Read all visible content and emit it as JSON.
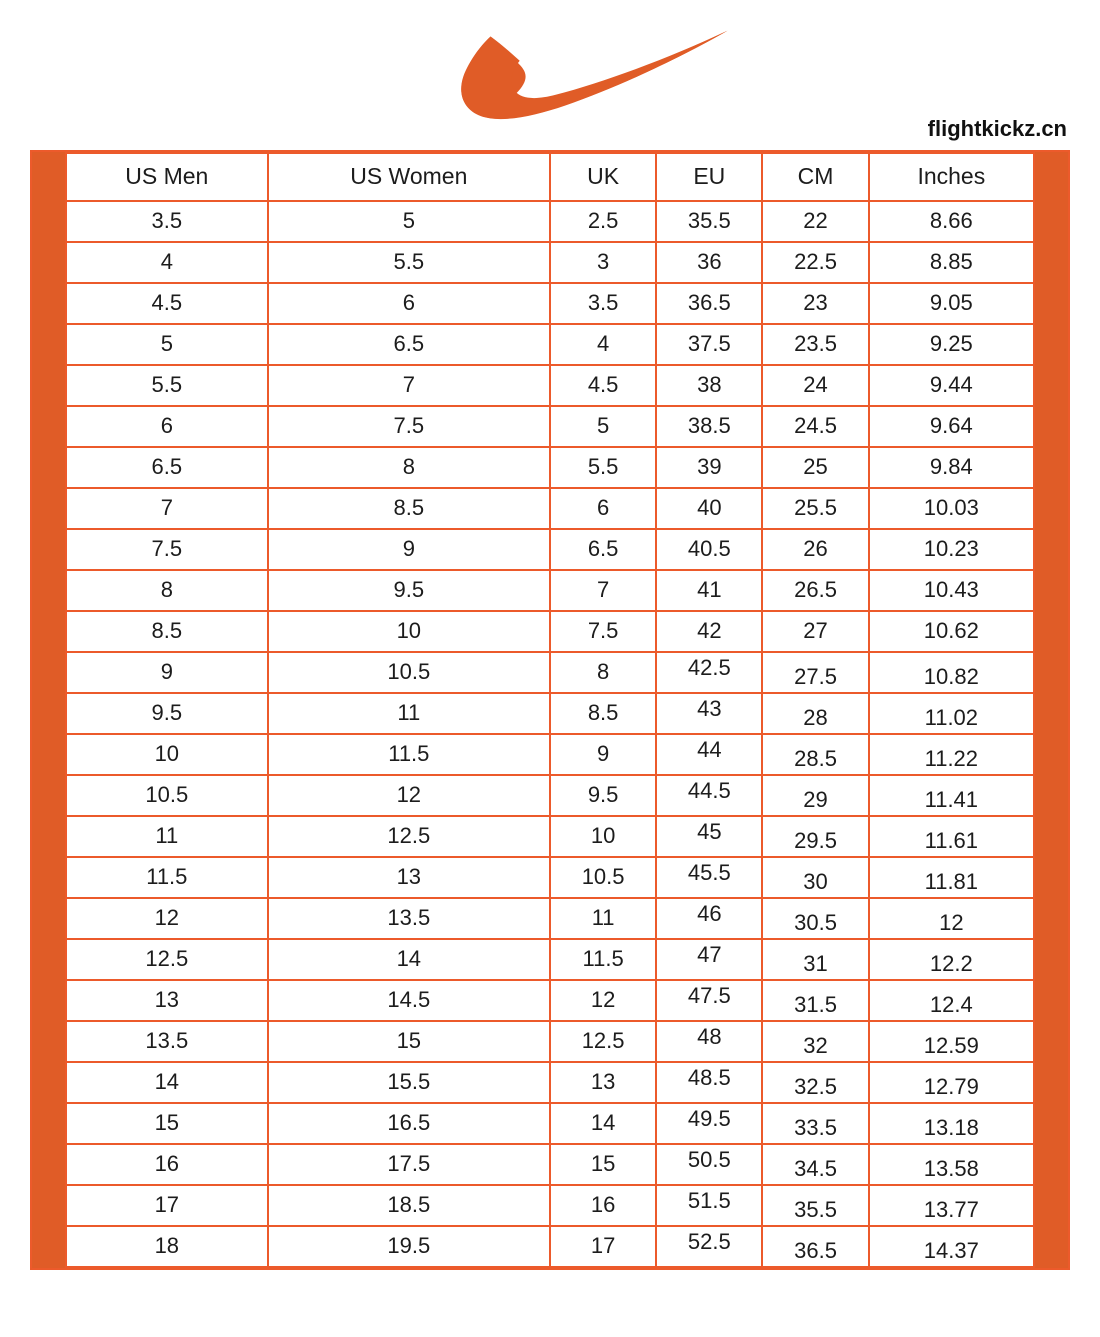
{
  "brand": {
    "logo": "nike-swoosh",
    "site_label": "flightkickz.cn"
  },
  "colors": {
    "accent": "#E05C27",
    "border": "#EC5A2B",
    "text": "#1c1c1c"
  },
  "chart_data": {
    "type": "table",
    "title": "Nike shoe size conversion chart",
    "columns": [
      "US Men",
      "US Women",
      "UK",
      "EU",
      "CM",
      "Inches"
    ],
    "rows": [
      [
        "3.5",
        "5",
        "2.5",
        "35.5",
        "22",
        "8.66"
      ],
      [
        "4",
        "5.5",
        "3",
        "36",
        "22.5",
        "8.85"
      ],
      [
        "4.5",
        "6",
        "3.5",
        "36.5",
        "23",
        "9.05"
      ],
      [
        "5",
        "6.5",
        "4",
        "37.5",
        "23.5",
        "9.25"
      ],
      [
        "5.5",
        "7",
        "4.5",
        "38",
        "24",
        "9.44"
      ],
      [
        "6",
        "7.5",
        "5",
        "38.5",
        "24.5",
        "9.64"
      ],
      [
        "6.5",
        "8",
        "5.5",
        "39",
        "25",
        "9.84"
      ],
      [
        "7",
        "8.5",
        "6",
        "40",
        "25.5",
        "10.03"
      ],
      [
        "7.5",
        "9",
        "6.5",
        "40.5",
        "26",
        "10.23"
      ],
      [
        "8",
        "9.5",
        "7",
        "41",
        "26.5",
        "10.43"
      ],
      [
        "8.5",
        "10",
        "7.5",
        "42",
        "27",
        "10.62"
      ],
      [
        "9",
        "10.5",
        "8",
        "42.5",
        "27.5",
        "10.82"
      ],
      [
        "9.5",
        "11",
        "8.5",
        "43",
        "28",
        "11.02"
      ],
      [
        "10",
        "11.5",
        "9",
        "44",
        "28.5",
        "11.22"
      ],
      [
        "10.5",
        "12",
        "9.5",
        "44.5",
        "29",
        "11.41"
      ],
      [
        "11",
        "12.5",
        "10",
        "45",
        "29.5",
        "11.61"
      ],
      [
        "11.5",
        "13",
        "10.5",
        "45.5",
        "30",
        "11.81"
      ],
      [
        "12",
        "13.5",
        "11",
        "46",
        "30.5",
        "12"
      ],
      [
        "12.5",
        "14",
        "11.5",
        "47",
        "31",
        "12.2"
      ],
      [
        "13",
        "14.5",
        "12",
        "47.5",
        "31.5",
        "12.4"
      ],
      [
        "13.5",
        "15",
        "12.5",
        "48",
        "32",
        "12.59"
      ],
      [
        "14",
        "15.5",
        "13",
        "48.5",
        "32.5",
        "12.79"
      ],
      [
        "15",
        "16.5",
        "14",
        "49.5",
        "33.5",
        "13.18"
      ],
      [
        "16",
        "17.5",
        "15",
        "50.5",
        "34.5",
        "13.58"
      ],
      [
        "17",
        "18.5",
        "16",
        "51.5",
        "35.5",
        "13.77"
      ],
      [
        "18",
        "19.5",
        "17",
        "52.5",
        "36.5",
        "14.37"
      ]
    ]
  }
}
